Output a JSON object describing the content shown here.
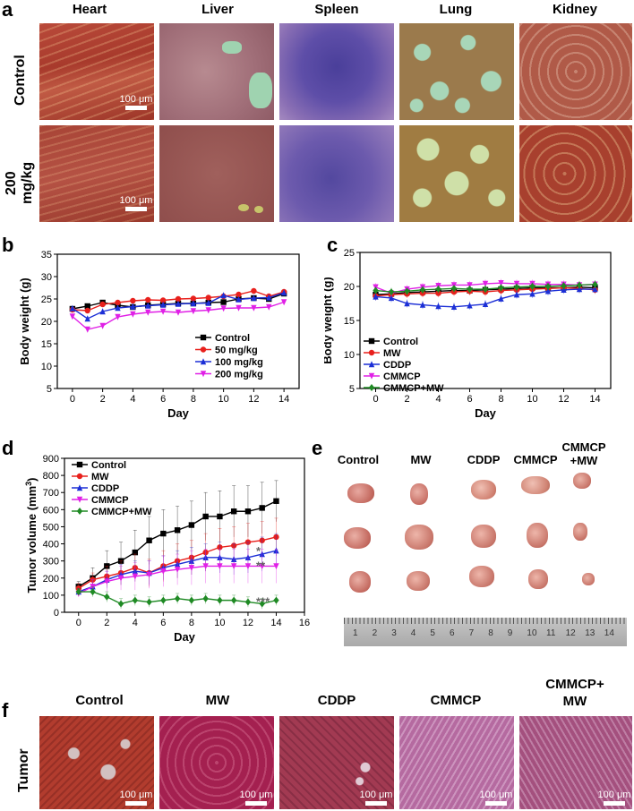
{
  "panels": {
    "a": {
      "label": "a",
      "columns": [
        "Heart",
        "Liver",
        "Spleen",
        "Lung",
        "Kidney"
      ],
      "rows": [
        "Control",
        "200",
        "mg/kg"
      ],
      "scale_bar": "100 μm"
    },
    "e": {
      "label": "e",
      "groups": [
        "Control",
        "MW",
        "CDDP",
        "CMMCP",
        "CMMCP",
        "+MW"
      ],
      "ruler_numbers": [
        "1",
        "2",
        "3",
        "4",
        "5",
        "6",
        "7",
        "8",
        "9",
        "10",
        "11",
        "12",
        "13",
        "14"
      ]
    },
    "f": {
      "label": "f",
      "columns": [
        "Control",
        "MW",
        "CDDP",
        "CMMCP",
        "CMMCP+",
        "MW"
      ],
      "row": "Tumor",
      "scale_bar": "100 μm"
    }
  },
  "colors": {
    "control": "#000000",
    "red": "#e8201c",
    "blue": "#1c2fd6",
    "magenta": "#e020e6",
    "green": "#1f8a24"
  },
  "chart_data": [
    {
      "panel": "b",
      "type": "line",
      "xlabel": "Day",
      "ylabel": "Body weight (g)",
      "xlim": [
        -1,
        15
      ],
      "ylim": [
        5,
        35
      ],
      "xticks": [
        0,
        2,
        4,
        6,
        8,
        10,
        12,
        14
      ],
      "yticks": [
        5,
        10,
        15,
        20,
        25,
        30,
        35
      ],
      "x": [
        0,
        1,
        2,
        3,
        4,
        5,
        6,
        7,
        8,
        9,
        10,
        11,
        12,
        13,
        14
      ],
      "series": [
        {
          "name": "Control",
          "color": "#000000",
          "marker": "square",
          "values": [
            22.8,
            23.4,
            24.2,
            23.6,
            23.2,
            23.6,
            23.8,
            24.0,
            24.0,
            24.2,
            24.3,
            25.0,
            25.2,
            25.0,
            26.2
          ]
        },
        {
          "name": "50 mg/kg",
          "color": "#e8201c",
          "marker": "circle",
          "values": [
            22.6,
            22.4,
            23.8,
            24.2,
            24.6,
            24.8,
            24.7,
            25.0,
            25.1,
            25.3,
            25.6,
            26.0,
            26.8,
            25.6,
            26.6
          ]
        },
        {
          "name": "100 mg/kg",
          "color": "#1c2fd6",
          "marker": "triangle",
          "values": [
            22.9,
            20.6,
            22.2,
            23.0,
            23.3,
            23.5,
            23.7,
            23.9,
            24.0,
            24.1,
            25.8,
            24.9,
            25.2,
            25.3,
            26.4
          ]
        },
        {
          "name": "200 mg/kg",
          "color": "#e020e6",
          "marker": "triangle-down",
          "values": [
            21.1,
            18.2,
            19.0,
            21.0,
            21.6,
            22.0,
            22.2,
            22.0,
            22.3,
            22.5,
            22.9,
            23.0,
            23.0,
            23.2,
            24.3
          ]
        }
      ]
    },
    {
      "panel": "c",
      "type": "line",
      "xlabel": "Day",
      "ylabel": "Body weight (g)",
      "xlim": [
        -1,
        15
      ],
      "ylim": [
        5,
        25
      ],
      "xticks": [
        0,
        2,
        4,
        6,
        8,
        10,
        12,
        14
      ],
      "yticks": [
        5,
        10,
        15,
        20,
        25
      ],
      "x": [
        0,
        1,
        2,
        3,
        4,
        5,
        6,
        7,
        8,
        9,
        10,
        11,
        12,
        13,
        14
      ],
      "series": [
        {
          "name": "Control",
          "color": "#000000",
          "marker": "square",
          "values": [
            18.8,
            18.9,
            19.1,
            19.2,
            19.3,
            19.4,
            19.4,
            19.5,
            19.6,
            19.7,
            19.8,
            19.8,
            19.8,
            19.9,
            19.8
          ]
        },
        {
          "name": "MW",
          "color": "#e8201c",
          "marker": "circle",
          "values": [
            18.6,
            18.8,
            18.9,
            19.0,
            19.0,
            19.2,
            19.3,
            19.2,
            19.4,
            19.5,
            19.6,
            19.7,
            19.8,
            19.7,
            19.5
          ]
        },
        {
          "name": "CDDP",
          "color": "#1c2fd6",
          "marker": "triangle",
          "values": [
            18.5,
            18.3,
            17.5,
            17.3,
            17.1,
            17.0,
            17.2,
            17.4,
            18.2,
            18.8,
            18.9,
            19.3,
            19.5,
            19.6,
            19.6
          ]
        },
        {
          "name": "CMMCP",
          "color": "#e020e6",
          "marker": "triangle-down",
          "values": [
            19.9,
            19.0,
            19.6,
            19.9,
            20.1,
            20.2,
            20.2,
            20.4,
            20.5,
            20.4,
            20.4,
            20.3,
            20.3,
            20.2,
            20.3
          ]
        },
        {
          "name": "CMMCP+MW",
          "color": "#1f8a24",
          "marker": "diamond",
          "values": [
            19.4,
            19.2,
            19.3,
            19.5,
            19.6,
            19.7,
            19.6,
            19.6,
            19.8,
            19.9,
            20.0,
            20.0,
            20.1,
            20.2,
            20.3
          ]
        }
      ]
    },
    {
      "panel": "d",
      "type": "line",
      "xlabel": "Day",
      "ylabel": "Tumor volume (mm",
      "ylabel_sup": "3",
      "ylabel_end": ")",
      "xlim": [
        -1,
        16
      ],
      "ylim": [
        0,
        900
      ],
      "xticks": [
        0,
        2,
        4,
        6,
        8,
        10,
        12,
        14,
        16
      ],
      "yticks": [
        0,
        100,
        200,
        300,
        400,
        500,
        600,
        700,
        800,
        900
      ],
      "x": [
        0,
        1,
        2,
        3,
        4,
        5,
        6,
        7,
        8,
        9,
        10,
        11,
        12,
        13,
        14
      ],
      "annotations": [
        "*",
        "**",
        "***"
      ],
      "series": [
        {
          "name": "Control",
          "color": "#000000",
          "marker": "square",
          "values": [
            150,
            200,
            270,
            300,
            350,
            420,
            460,
            480,
            510,
            560,
            560,
            590,
            590,
            610,
            650
          ],
          "errors": [
            30,
            60,
            90,
            110,
            130,
            140,
            140,
            140,
            140,
            140,
            150,
            150,
            150,
            150,
            120
          ]
        },
        {
          "name": "MW",
          "color": "#e8201c",
          "marker": "circle",
          "values": [
            140,
            190,
            210,
            230,
            260,
            230,
            270,
            300,
            320,
            350,
            380,
            390,
            410,
            420,
            440
          ],
          "errors": [
            30,
            40,
            60,
            70,
            80,
            80,
            90,
            100,
            100,
            110,
            110,
            110,
            110,
            110,
            110
          ]
        },
        {
          "name": "CDDP",
          "color": "#1c2fd6",
          "marker": "triangle",
          "values": [
            120,
            150,
            190,
            220,
            240,
            230,
            260,
            280,
            300,
            320,
            320,
            310,
            320,
            340,
            360
          ],
          "errors": [
            20,
            40,
            50,
            60,
            60,
            70,
            70,
            80,
            80,
            80,
            90,
            90,
            90,
            100,
            100
          ]
        },
        {
          "name": "CMMCP",
          "color": "#e020e6",
          "marker": "triangle-down",
          "values": [
            110,
            150,
            180,
            200,
            210,
            220,
            240,
            250,
            260,
            270,
            270,
            270,
            270,
            270,
            270
          ],
          "errors": [
            20,
            40,
            60,
            70,
            80,
            80,
            90,
            90,
            100,
            100,
            100,
            100,
            100,
            100,
            100
          ]
        },
        {
          "name": "CMMCP+MW",
          "color": "#1f8a24",
          "marker": "diamond",
          "values": [
            120,
            120,
            90,
            50,
            70,
            60,
            70,
            80,
            70,
            80,
            70,
            70,
            60,
            50,
            70
          ],
          "errors": [
            20,
            30,
            30,
            30,
            30,
            30,
            30,
            30,
            30,
            30,
            30,
            30,
            30,
            30,
            30
          ]
        }
      ]
    }
  ]
}
